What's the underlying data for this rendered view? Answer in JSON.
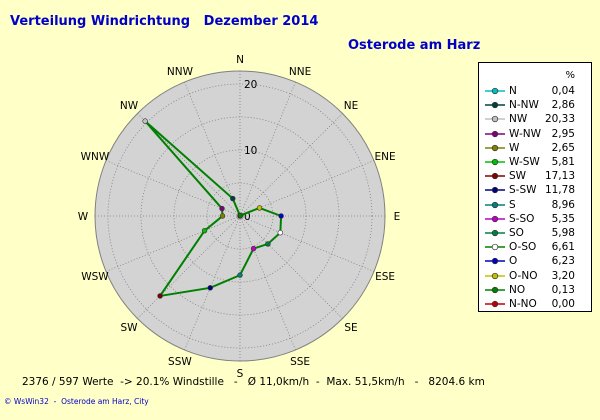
{
  "title": "Verteilung Windrichtung   Dezember 2014",
  "subtitle": "Osterode am Harz",
  "legend_header": "%",
  "footer": "2376 / 597 Werte  -> 20.1% Windstille   -   Ø 11,0km/h  -  Max. 51,5km/h   -   8204.6 km",
  "credit": "© WsWin32  -  Osterode am Harz, City",
  "chart_data": {
    "type": "radar",
    "title": "Verteilung Windrichtung   Dezember 2014",
    "subtitle": "Osterode am Harz",
    "rlim": [
      0,
      22
    ],
    "radial_ticks": [
      {
        "value": 0,
        "label": "0"
      },
      {
        "value": 10,
        "label": "10"
      },
      {
        "value": 20,
        "label": "20"
      }
    ],
    "grid": true,
    "legend_position": "right",
    "directions": [
      "N",
      "NNE",
      "NE",
      "ENE",
      "E",
      "ESE",
      "SE",
      "SSE",
      "S",
      "SSW",
      "SW",
      "WSW",
      "W",
      "WNW",
      "NW",
      "NNW"
    ],
    "series": [
      {
        "name": "Windrichtung",
        "color": "#008000",
        "values": [
          0.04,
          0.0,
          0.13,
          3.2,
          6.23,
          6.61,
          5.98,
          5.35,
          8.96,
          11.78,
          17.13,
          5.81,
          2.65,
          2.95,
          20.33,
          2.86
        ]
      }
    ],
    "legend": [
      {
        "label": "N",
        "value": "0,04",
        "color": "#00c0c0"
      },
      {
        "label": "N-NW",
        "value": "2,86",
        "color": "#004040"
      },
      {
        "label": "NW",
        "value": "20,33",
        "color": "#c0c0c0"
      },
      {
        "label": "W-NW",
        "value": "2,95",
        "color": "#800080"
      },
      {
        "label": "W",
        "value": "2,65",
        "color": "#808000"
      },
      {
        "label": "W-SW",
        "value": "5,81",
        "color": "#00c000"
      },
      {
        "label": "SW",
        "value": "17,13",
        "color": "#800000"
      },
      {
        "label": "S-SW",
        "value": "11,78",
        "color": "#000080"
      },
      {
        "label": "S",
        "value": "8,96",
        "color": "#008080"
      },
      {
        "label": "S-SO",
        "value": "5,35",
        "color": "#c000c0"
      },
      {
        "label": "SO",
        "value": "5,98",
        "color": "#008040"
      },
      {
        "label": "O-SO",
        "value": "6,61",
        "color": "#ffffff"
      },
      {
        "label": "O",
        "value": "6,23",
        "color": "#0000c0"
      },
      {
        "label": "O-NO",
        "value": "3,20",
        "color": "#c0c000"
      },
      {
        "label": "NO",
        "value": "0,13",
        "color": "#008000"
      },
      {
        "label": "N-NO",
        "value": "0,00",
        "color": "#c00000"
      }
    ]
  }
}
